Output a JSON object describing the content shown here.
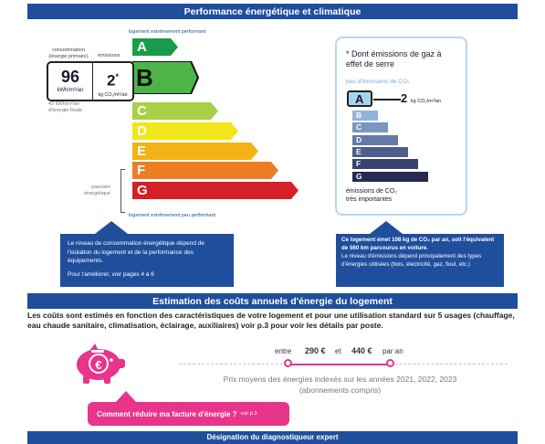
{
  "top_section_title": "Performance énergétique et climatique",
  "dpe": {
    "best_label": "logement extrêmement performant",
    "worst_label": "logement extrêmement peu performant",
    "bars": [
      {
        "letter": "A",
        "color": "#1a9b4b"
      },
      {
        "letter": "B",
        "color": "#4db547"
      },
      {
        "letter": "C",
        "color": "#a8cf45"
      },
      {
        "letter": "D",
        "color": "#f1e61b"
      },
      {
        "letter": "E",
        "color": "#f3b215"
      },
      {
        "letter": "F",
        "color": "#ed7d22"
      },
      {
        "letter": "G",
        "color": "#d42027"
      }
    ],
    "current_letter": "B",
    "consumption_label": "consommation\n(énergie primaire)",
    "emissions_label": "émissions",
    "consumption_value": "96",
    "consumption_unit": "kWh/m²/an",
    "emissions_value": "2",
    "emissions_star": "*",
    "emissions_unit": "kg CO₂/m²/an",
    "final_energy": "42 kWh/m²/an\nd'énergie finale",
    "passoire": "passoire\nénergétique"
  },
  "ges": {
    "title": "* Dont émissions de gaz à effet de serre",
    "best_label": "peu d'émissions de CO₂",
    "current_value": "2",
    "current_unit": "kg CO₂/m²/an",
    "bars": [
      {
        "letter": "A",
        "color": "#a5d3f1"
      },
      {
        "letter": "B",
        "color": "#8fb4d8"
      },
      {
        "letter": "C",
        "color": "#7a96c1"
      },
      {
        "letter": "D",
        "color": "#6479a8"
      },
      {
        "letter": "E",
        "color": "#4e5d8c"
      },
      {
        "letter": "F",
        "color": "#3a4370"
      },
      {
        "letter": "G",
        "color": "#272a50"
      }
    ],
    "worst_label": "émissions de CO₂\ntrès importantes"
  },
  "callout_left": {
    "text": "Le niveau de consommation énergétique dépend de l'isolation du logement et de la performance des équipements.",
    "link": "Pour l'améliorer, voir pages 4 à 6"
  },
  "callout_right": {
    "bold": "Ce logement émet 108 kg de CO₂ par an, soit l'équivalent de 560 km parcourus en voiture.",
    "text": "Le niveau d'émissions dépend principalement des types d'énergies utilisées (bois, électricité, gaz, fioul, etc.)"
  },
  "cost_section_title": "Estimation des coûts annuels d'énergie du logement",
  "cost_intro": "Les coûts sont estimés en fonction des caractéristiques de votre logement et pour une utilisation standard sur 5 usages (chauffage, eau chaude sanitaire, climatisation, éclairage, auxiliaires) voir p.3 pour voir les détails par poste.",
  "cost_range": {
    "between": "entre",
    "min": "290 €",
    "and": "et",
    "max": "440 €",
    "per_year": "par an"
  },
  "price_note": "Prix moyens des énergies indexés sur les années 2021, 2022, 2023",
  "price_note_sub": "(abonnements compris)",
  "reduce_button": "Comment réduire ma facture d'énergie ?",
  "reduce_button_ref": "voir p.3",
  "bottom_section_title": "Désignation du diagnostiqueur expert",
  "currency_symbol": "€"
}
